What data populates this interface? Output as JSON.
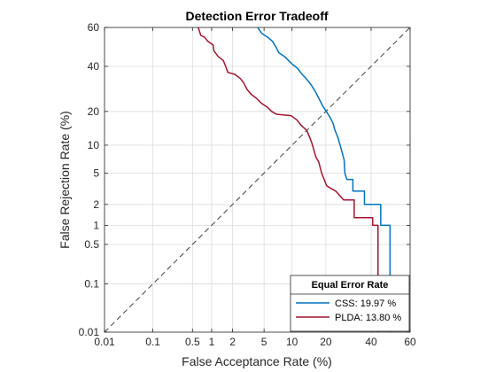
{
  "chart_data": {
    "type": "line",
    "title": "Detection Error Tradeoff",
    "xlabel": "False Acceptance Rate (%)",
    "ylabel": "False Rejection Rate (%)",
    "x_scale": "probit",
    "y_scale": "probit",
    "xlim": [
      0.01,
      60
    ],
    "ylim": [
      0.01,
      60
    ],
    "x_ticks": [
      0.01,
      0.1,
      0.5,
      1,
      2,
      5,
      10,
      20,
      40,
      60
    ],
    "x_tick_labels": [
      "0.01",
      "0.1",
      "0.5",
      "1",
      "2",
      "5",
      "10",
      "20",
      "40",
      "60"
    ],
    "y_ticks": [
      0.01,
      0.1,
      0.5,
      1,
      2,
      5,
      10,
      20,
      40,
      60
    ],
    "y_tick_labels": [
      "0.01",
      "0.1",
      "0.5",
      "1",
      "2",
      "5",
      "10",
      "20",
      "40",
      "60"
    ],
    "grid": true,
    "legend": {
      "title": "Equal Error Rate",
      "placement": "bottom-right",
      "entries": [
        "CSS:   19.97 %",
        "PLDA: 13.80 %"
      ]
    },
    "series": [
      {
        "name": "CSS",
        "color": "#0072BD",
        "points": [
          [
            4.2,
            60
          ],
          [
            4.7,
            57
          ],
          [
            5.5,
            55
          ],
          [
            6.2,
            53
          ],
          [
            6.8,
            50
          ],
          [
            7.3,
            47
          ],
          [
            8.4,
            45
          ],
          [
            9.2,
            43
          ],
          [
            10.1,
            41
          ],
          [
            11.3,
            39
          ],
          [
            12.5,
            36
          ],
          [
            13.6,
            34
          ],
          [
            15.1,
            31
          ],
          [
            16.4,
            28
          ],
          [
            17.6,
            25
          ],
          [
            18.9,
            22
          ],
          [
            20.2,
            19.97
          ],
          [
            21.5,
            18
          ],
          [
            22.7,
            16
          ],
          [
            23.4,
            14
          ],
          [
            24.6,
            12
          ],
          [
            25.6,
            10
          ],
          [
            26.4,
            8.5
          ],
          [
            27.3,
            7
          ],
          [
            27.6,
            5
          ],
          [
            28.5,
            4.2
          ],
          [
            31.2,
            4.2
          ],
          [
            31.2,
            3
          ],
          [
            36.7,
            3
          ],
          [
            36.7,
            2
          ],
          [
            44.9,
            2
          ],
          [
            44.9,
            1
          ],
          [
            49.7,
            1
          ],
          [
            49.7,
            0.01
          ]
        ]
      },
      {
        "name": "PLDA",
        "color": "#A2142F",
        "points": [
          [
            0.62,
            60
          ],
          [
            0.68,
            56
          ],
          [
            0.78,
            55
          ],
          [
            0.87,
            53
          ],
          [
            1.05,
            51
          ],
          [
            1.08,
            48
          ],
          [
            1.25,
            45
          ],
          [
            1.48,
            43
          ],
          [
            1.6,
            40
          ],
          [
            1.72,
            37
          ],
          [
            2.15,
            36
          ],
          [
            2.54,
            34
          ],
          [
            2.8,
            32
          ],
          [
            3.1,
            29
          ],
          [
            3.45,
            27
          ],
          [
            4.1,
            25
          ],
          [
            4.7,
            23
          ],
          [
            5.5,
            21.5
          ],
          [
            6.1,
            20
          ],
          [
            6.9,
            19
          ],
          [
            9.8,
            18.5
          ],
          [
            11.2,
            17
          ],
          [
            12.1,
            15.5
          ],
          [
            13.8,
            13.8
          ],
          [
            14.6,
            12
          ],
          [
            15.3,
            10.5
          ],
          [
            15.9,
            9
          ],
          [
            16.6,
            7.5
          ],
          [
            17.5,
            6.7
          ],
          [
            18.5,
            5
          ],
          [
            20.3,
            3.5
          ],
          [
            23.8,
            3
          ],
          [
            27.1,
            2.3
          ],
          [
            31.8,
            2.3
          ],
          [
            31.8,
            1.3
          ],
          [
            40.8,
            1.3
          ],
          [
            40.8,
            1
          ],
          [
            43.5,
            1
          ],
          [
            43.5,
            0.01
          ]
        ]
      }
    ],
    "reference_line": {
      "style": "dashed",
      "color": "#404040"
    }
  }
}
